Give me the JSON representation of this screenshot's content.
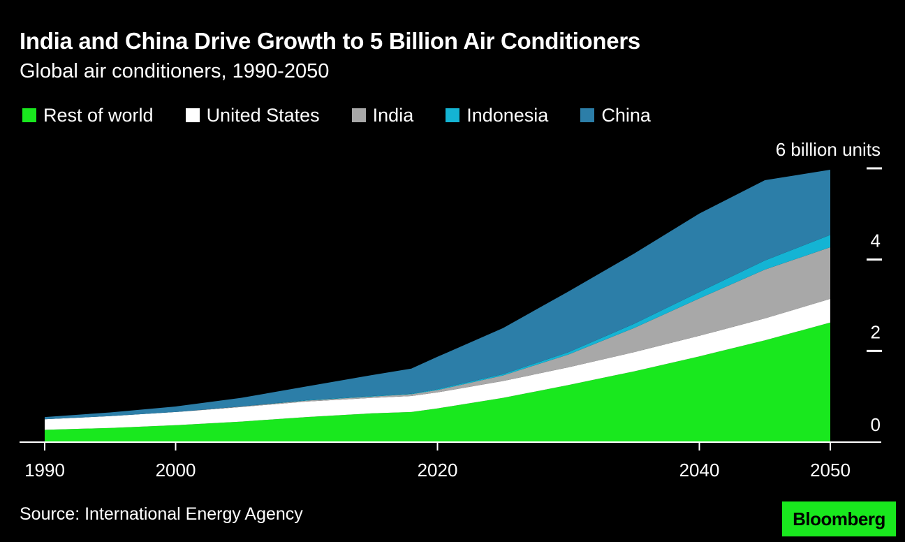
{
  "title": "India and China Drive Growth to 5 Billion Air Conditioners",
  "subtitle": "Global air conditioners, 1990-2050",
  "source": "Source: International Energy Agency",
  "brand": "Bloomberg",
  "colors": {
    "background": "#000000",
    "text": "#ffffff",
    "brand_bg": "#19e81e"
  },
  "chart_data": {
    "type": "area",
    "stacked": true,
    "x": [
      1990,
      1995,
      2000,
      2005,
      2010,
      2015,
      2018,
      2020,
      2025,
      2030,
      2035,
      2040,
      2045,
      2050
    ],
    "xlim": [
      1990,
      2050
    ],
    "ylim": [
      0,
      6
    ],
    "y_unit": "6 billion units",
    "x_ticks": [
      1990,
      2000,
      2020,
      2040,
      2050
    ],
    "y_ticks": [
      0,
      2,
      4,
      6
    ],
    "y_tick_labels": [
      "0",
      "2",
      "4",
      "6 billion units"
    ],
    "y_axis_position": "right",
    "grid": false,
    "legend_position": "top-left",
    "series": [
      {
        "name": "Rest of world",
        "color": "#19e81e",
        "values": [
          0.27,
          0.31,
          0.37,
          0.45,
          0.55,
          0.63,
          0.66,
          0.74,
          0.97,
          1.25,
          1.55,
          1.88,
          2.23,
          2.62
        ]
      },
      {
        "name": "United States",
        "color": "#ffffff",
        "values": [
          0.23,
          0.26,
          0.29,
          0.32,
          0.34,
          0.34,
          0.35,
          0.35,
          0.37,
          0.39,
          0.42,
          0.45,
          0.48,
          0.52
        ]
      },
      {
        "name": "India",
        "color": "#a8a8a8",
        "values": [
          0.0,
          0.0,
          0.0,
          0.01,
          0.02,
          0.03,
          0.04,
          0.05,
          0.12,
          0.28,
          0.53,
          0.82,
          1.07,
          1.13
        ]
      },
      {
        "name": "Indonesia",
        "color": "#14b4d4",
        "values": [
          0.0,
          0.0,
          0.0,
          0.0,
          0.01,
          0.01,
          0.01,
          0.02,
          0.03,
          0.05,
          0.09,
          0.14,
          0.2,
          0.27
        ]
      },
      {
        "name": "China",
        "color": "#2c7ea8",
        "values": [
          0.05,
          0.08,
          0.12,
          0.19,
          0.3,
          0.46,
          0.55,
          0.71,
          1.01,
          1.33,
          1.54,
          1.72,
          1.76,
          1.43
        ]
      }
    ]
  }
}
